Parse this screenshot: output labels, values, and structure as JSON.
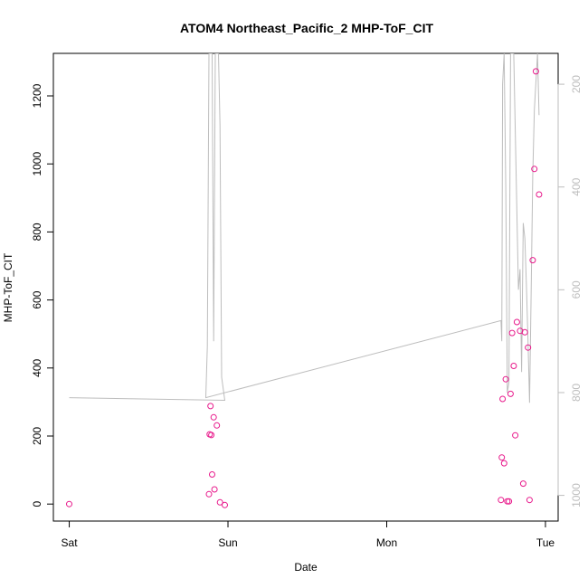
{
  "chart_data": {
    "type": "scatter",
    "title": "ATOM4 Northeast_Pacific_2 MHP-ToF_CIT",
    "xlabel": "Date",
    "ylabel": "MHP-ToF_CIT",
    "x_ticks": [
      {
        "label": "Sat",
        "day": 0
      },
      {
        "label": "Sun",
        "day": 1
      },
      {
        "label": "Mon",
        "day": 2
      },
      {
        "label": "Tue",
        "day": 3
      }
    ],
    "xlim_days": [
      -0.1,
      3.08
    ],
    "ylim": [
      -50,
      1325
    ],
    "y_ticks": [
      0,
      200,
      400,
      600,
      800,
      1000,
      1200
    ],
    "y2_ticks": [
      200,
      400,
      600,
      800,
      1000
    ],
    "y2lim": [
      1050,
      140
    ],
    "grid": false,
    "colors": {
      "points": "#e8198b",
      "line": "#bdbdbd",
      "axis": "#000000",
      "axis_right": "#bdbdbd"
    },
    "series": [
      {
        "type": "scatter",
        "points": [
          [
            0.0,
            0
          ],
          [
            0.88,
            29
          ],
          [
            0.885,
            205
          ],
          [
            0.89,
            288
          ],
          [
            0.895,
            203
          ],
          [
            0.9,
            87
          ],
          [
            0.91,
            255
          ],
          [
            0.915,
            43
          ],
          [
            0.93,
            231
          ],
          [
            0.95,
            5
          ],
          [
            0.98,
            -3
          ],
          [
            2.72,
            12
          ],
          [
            2.725,
            137
          ],
          [
            2.73,
            309
          ],
          [
            2.74,
            120
          ],
          [
            2.75,
            367
          ],
          [
            2.76,
            8
          ],
          [
            2.77,
            8
          ],
          [
            2.78,
            324
          ],
          [
            2.79,
            503
          ],
          [
            2.8,
            406
          ],
          [
            2.81,
            202
          ],
          [
            2.82,
            535
          ],
          [
            2.84,
            509
          ],
          [
            2.86,
            60
          ],
          [
            2.87,
            505
          ],
          [
            2.89,
            460
          ],
          [
            2.9,
            12
          ],
          [
            2.92,
            717
          ],
          [
            2.93,
            985
          ],
          [
            2.94,
            1272
          ],
          [
            2.96,
            910
          ]
        ]
      },
      {
        "type": "line",
        "axis": "right",
        "points": [
          [
            0.0,
            810
          ],
          [
            0.98,
            815
          ],
          [
            0.96,
            770
          ],
          [
            0.95,
            280
          ],
          [
            0.94,
            140
          ],
          [
            0.92,
            140
          ],
          [
            0.91,
            700
          ],
          [
            0.9,
            140
          ],
          [
            0.88,
            140
          ],
          [
            0.87,
            710
          ],
          [
            0.86,
            810
          ],
          [
            2.72,
            660
          ],
          [
            2.725,
            700
          ],
          [
            2.73,
            200
          ],
          [
            2.74,
            140
          ],
          [
            2.75,
            400
          ],
          [
            2.76,
            800
          ],
          [
            2.77,
            780
          ],
          [
            2.78,
            140
          ],
          [
            2.8,
            140
          ],
          [
            2.82,
            450
          ],
          [
            2.83,
            600
          ],
          [
            2.84,
            560
          ],
          [
            2.85,
            760
          ],
          [
            2.86,
            470
          ],
          [
            2.87,
            500
          ],
          [
            2.88,
            590
          ],
          [
            2.89,
            700
          ],
          [
            2.9,
            820
          ],
          [
            2.91,
            600
          ],
          [
            2.92,
            380
          ],
          [
            2.93,
            250
          ],
          [
            2.95,
            140
          ],
          [
            2.96,
            260
          ]
        ]
      }
    ]
  }
}
